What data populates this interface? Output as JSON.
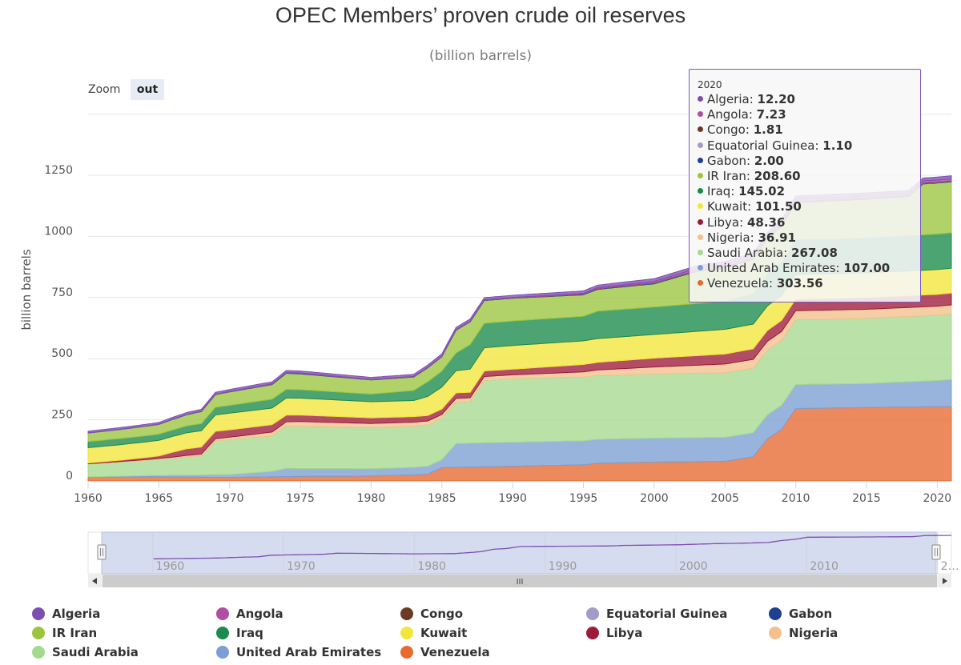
{
  "title": "OPEC Members’ proven crude oil reserves",
  "subtitle": "(billion barrels)",
  "zoom": {
    "label": "Zoom",
    "button": "out"
  },
  "tooltip": {
    "year": "2020",
    "rows": [
      {
        "name": "Algeria",
        "value": "12.20",
        "color": "#7c4fb0"
      },
      {
        "name": "Angola",
        "value": "7.23",
        "color": "#b04ea6"
      },
      {
        "name": "Congo",
        "value": "1.81",
        "color": "#6b3a24"
      },
      {
        "name": "Equatorial Guinea",
        "value": "1.10",
        "color": "#a39cc9"
      },
      {
        "name": "Gabon",
        "value": "2.00",
        "color": "#1f3f8f"
      },
      {
        "name": "IR Iran",
        "value": "208.60",
        "color": "#9bc53d"
      },
      {
        "name": "Iraq",
        "value": "145.02",
        "color": "#1b8a4c"
      },
      {
        "name": "Kuwait",
        "value": "101.50",
        "color": "#f2e63a"
      },
      {
        "name": "Libya",
        "value": "48.36",
        "color": "#9e1a3a"
      },
      {
        "name": "Nigeria",
        "value": "36.91",
        "color": "#f4c08d"
      },
      {
        "name": "Saudi Arabia",
        "value": "267.08",
        "color": "#a5d98f"
      },
      {
        "name": "United Arab Emirates",
        "value": "107.00",
        "color": "#7b9fd4"
      },
      {
        "name": "Venezuela",
        "value": "303.56",
        "color": "#e8692f"
      }
    ]
  },
  "legend": [
    {
      "name": "Algeria",
      "color": "#7c4fb0"
    },
    {
      "name": "Angola",
      "color": "#b04ea6"
    },
    {
      "name": "Congo",
      "color": "#6b3a24"
    },
    {
      "name": "Equatorial Guinea",
      "color": "#a39cc9"
    },
    {
      "name": "Gabon",
      "color": "#1f3f8f"
    },
    {
      "name": "IR Iran",
      "color": "#9bc53d"
    },
    {
      "name": "Iraq",
      "color": "#1b8a4c"
    },
    {
      "name": "Kuwait",
      "color": "#f2e63a"
    },
    {
      "name": "Libya",
      "color": "#9e1a3a"
    },
    {
      "name": "Nigeria",
      "color": "#f4c08d"
    },
    {
      "name": "Saudi Arabia",
      "color": "#a5d98f"
    },
    {
      "name": "United Arab Emirates",
      "color": "#7b9fd4"
    },
    {
      "name": "Venezuela",
      "color": "#e8692f"
    }
  ],
  "navigator": {
    "ticks": [
      "1960",
      "1970",
      "1980",
      "1990",
      "2000",
      "2010",
      "2…"
    ],
    "scroll_grip": "III"
  },
  "chart_data": {
    "type": "area",
    "stacked": true,
    "title": "OPEC Members’ proven crude oil reserves",
    "subtitle": "(billion barrels)",
    "ylabel": "billion barrels",
    "xlabel": "",
    "xlim": [
      1960,
      2021
    ],
    "ylim": [
      0,
      1500
    ],
    "yticks": [
      0,
      250,
      500,
      750,
      1000,
      1250
    ],
    "xticks": [
      1960,
      1965,
      1970,
      1975,
      1980,
      1985,
      1990,
      1995,
      2000,
      2005,
      2010,
      2015,
      2020
    ],
    "stack_order_bottom_to_top": [
      "Venezuela",
      "United Arab Emirates",
      "Saudi Arabia",
      "Nigeria",
      "Libya",
      "Kuwait",
      "Iraq",
      "IR Iran",
      "Gabon",
      "Equatorial Guinea",
      "Congo",
      "Angola",
      "Algeria"
    ],
    "series": [
      {
        "name": "Venezuela",
        "color": "#e8692f",
        "points": [
          [
            1960,
            17
          ],
          [
            1965,
            17
          ],
          [
            1970,
            14
          ],
          [
            1974,
            18
          ],
          [
            1980,
            20
          ],
          [
            1983,
            25
          ],
          [
            1984,
            28
          ],
          [
            1985,
            54
          ],
          [
            1988,
            58
          ],
          [
            1990,
            60
          ],
          [
            1995,
            66
          ],
          [
            1996,
            72
          ],
          [
            2000,
            77
          ],
          [
            2005,
            80
          ],
          [
            2007,
            99
          ],
          [
            2008,
            172
          ],
          [
            2009,
            211
          ],
          [
            2010,
            296
          ],
          [
            2015,
            300
          ],
          [
            2020,
            303.56
          ],
          [
            2021,
            303.8
          ]
        ]
      },
      {
        "name": "United Arab Emirates",
        "color": "#7b9fd4",
        "points": [
          [
            1960,
            0
          ],
          [
            1963,
            3
          ],
          [
            1970,
            12
          ],
          [
            1973,
            22
          ],
          [
            1974,
            33
          ],
          [
            1980,
            30
          ],
          [
            1983,
            30
          ],
          [
            1984,
            32
          ],
          [
            1985,
            33
          ],
          [
            1986,
            97
          ],
          [
            1988,
            98
          ],
          [
            1990,
            98
          ],
          [
            1995,
            98
          ],
          [
            2000,
            98
          ],
          [
            2005,
            98
          ],
          [
            2010,
            98
          ],
          [
            2015,
            98
          ],
          [
            2020,
            107
          ],
          [
            2021,
            111
          ]
        ]
      },
      {
        "name": "Saudi Arabia",
        "color": "#a5d98f",
        "points": [
          [
            1960,
            52
          ],
          [
            1964,
            63
          ],
          [
            1966,
            70
          ],
          [
            1967,
            75
          ],
          [
            1968,
            78
          ],
          [
            1969,
            139
          ],
          [
            1970,
            143
          ],
          [
            1973,
            145
          ],
          [
            1974,
            173
          ],
          [
            1980,
            168
          ],
          [
            1983,
            169
          ],
          [
            1985,
            169
          ],
          [
            1987,
            170
          ],
          [
            1988,
            255
          ],
          [
            1990,
            260
          ],
          [
            1995,
            261
          ],
          [
            2000,
            262
          ],
          [
            2005,
            264
          ],
          [
            2007,
            264
          ],
          [
            2009,
            265
          ],
          [
            2010,
            265
          ],
          [
            2015,
            267
          ],
          [
            2020,
            267.08
          ],
          [
            2021,
            268
          ]
        ]
      },
      {
        "name": "Nigeria",
        "color": "#f4c08d",
        "points": [
          [
            1960,
            1
          ],
          [
            1965,
            3
          ],
          [
            1970,
            10
          ],
          [
            1975,
            20
          ],
          [
            1980,
            17
          ],
          [
            1985,
            16
          ],
          [
            1990,
            16
          ],
          [
            1995,
            21
          ],
          [
            2000,
            29
          ],
          [
            2005,
            36
          ],
          [
            2010,
            37
          ],
          [
            2015,
            37
          ],
          [
            2020,
            36.91
          ],
          [
            2021,
            37
          ]
        ]
      },
      {
        "name": "Libya",
        "color": "#9e1a3a",
        "points": [
          [
            1960,
            3
          ],
          [
            1962,
            5
          ],
          [
            1965,
            10
          ],
          [
            1966,
            20
          ],
          [
            1967,
            27
          ],
          [
            1968,
            29
          ],
          [
            1969,
            30
          ],
          [
            1970,
            30
          ],
          [
            1973,
            30
          ],
          [
            1974,
            27
          ],
          [
            1980,
            23
          ],
          [
            1985,
            22
          ],
          [
            1990,
            23
          ],
          [
            1995,
            30
          ],
          [
            2000,
            36
          ],
          [
            2005,
            41
          ],
          [
            2007,
            43
          ],
          [
            2008,
            44
          ],
          [
            2010,
            47
          ],
          [
            2015,
            48
          ],
          [
            2020,
            48.36
          ],
          [
            2021,
            48.4
          ]
        ]
      },
      {
        "name": "Kuwait",
        "color": "#f2e63a",
        "points": [
          [
            1960,
            63
          ],
          [
            1965,
            64
          ],
          [
            1970,
            68
          ],
          [
            1973,
            68
          ],
          [
            1974,
            70
          ],
          [
            1980,
            66
          ],
          [
            1983,
            66
          ],
          [
            1985,
            90
          ],
          [
            1986,
            91
          ],
          [
            1987,
            95
          ],
          [
            1988,
            95
          ],
          [
            1990,
            97
          ],
          [
            1995,
            97
          ],
          [
            2000,
            97
          ],
          [
            2005,
            101
          ],
          [
            2010,
            101
          ],
          [
            2015,
            101
          ],
          [
            2020,
            101.5
          ],
          [
            2021,
            101.5
          ]
        ]
      },
      {
        "name": "Iraq",
        "color": "#1b8a4c",
        "points": [
          [
            1960,
            25
          ],
          [
            1965,
            25
          ],
          [
            1970,
            32
          ],
          [
            1973,
            36
          ],
          [
            1974,
            35
          ],
          [
            1980,
            31
          ],
          [
            1983,
            41
          ],
          [
            1984,
            60
          ],
          [
            1985,
            65
          ],
          [
            1986,
            72
          ],
          [
            1987,
            100
          ],
          [
            1990,
            100
          ],
          [
            1995,
            100
          ],
          [
            1996,
            112
          ],
          [
            2000,
            112
          ],
          [
            2005,
            115
          ],
          [
            2010,
            143
          ],
          [
            2015,
            143
          ],
          [
            2020,
            145.02
          ],
          [
            2021,
            145.02
          ]
        ]
      },
      {
        "name": "IR Iran",
        "color": "#9bc53d",
        "points": [
          [
            1960,
            35
          ],
          [
            1965,
            40
          ],
          [
            1970,
            55
          ],
          [
            1973,
            60
          ],
          [
            1974,
            66
          ],
          [
            1980,
            58
          ],
          [
            1983,
            55
          ],
          [
            1985,
            59
          ],
          [
            1986,
            93
          ],
          [
            1987,
            93
          ],
          [
            1988,
            93
          ],
          [
            1990,
            93
          ],
          [
            1995,
            88
          ],
          [
            2000,
            95
          ],
          [
            2003,
            131
          ],
          [
            2005,
            137
          ],
          [
            2007,
            138
          ],
          [
            2010,
            151
          ],
          [
            2015,
            158
          ],
          [
            2018,
            160
          ],
          [
            2019,
            208
          ],
          [
            2020,
            208.6
          ],
          [
            2021,
            208.6
          ]
        ]
      },
      {
        "name": "Gabon",
        "color": "#1f3f8f",
        "points": [
          [
            1960,
            0.2
          ],
          [
            1970,
            1
          ],
          [
            1975,
            2
          ],
          [
            1980,
            0.5
          ],
          [
            1990,
            0.9
          ],
          [
            2000,
            2.5
          ],
          [
            2010,
            2
          ],
          [
            2020,
            2
          ],
          [
            2021,
            2
          ]
        ]
      },
      {
        "name": "Equatorial Guinea",
        "color": "#a39cc9",
        "points": [
          [
            1960,
            0
          ],
          [
            1990,
            0
          ],
          [
            1995,
            0
          ],
          [
            2000,
            1
          ],
          [
            2010,
            1.7
          ],
          [
            2020,
            1.1
          ],
          [
            2021,
            1.1
          ]
        ]
      },
      {
        "name": "Congo",
        "color": "#6b3a24",
        "points": [
          [
            1960,
            0
          ],
          [
            1970,
            0.1
          ],
          [
            1975,
            0.5
          ],
          [
            1980,
            0.6
          ],
          [
            1990,
            0.8
          ],
          [
            2000,
            1.5
          ],
          [
            2010,
            1.6
          ],
          [
            2020,
            1.81
          ],
          [
            2021,
            1.81
          ]
        ]
      },
      {
        "name": "Angola",
        "color": "#b04ea6",
        "points": [
          [
            1960,
            0
          ],
          [
            1975,
            1.5
          ],
          [
            1980,
            1.2
          ],
          [
            1990,
            1.5
          ],
          [
            2000,
            5
          ],
          [
            2007,
            9
          ],
          [
            2010,
            9.5
          ],
          [
            2015,
            8.4
          ],
          [
            2020,
            7.23
          ],
          [
            2021,
            7.2
          ]
        ]
      },
      {
        "name": "Algeria",
        "color": "#7c4fb0",
        "points": [
          [
            1960,
            7
          ],
          [
            1965,
            7
          ],
          [
            1970,
            8
          ],
          [
            1975,
            8
          ],
          [
            1980,
            8
          ],
          [
            1985,
            9
          ],
          [
            1990,
            9
          ],
          [
            1995,
            10
          ],
          [
            2000,
            11
          ],
          [
            2005,
            12
          ],
          [
            2010,
            12.2
          ],
          [
            2015,
            12.2
          ],
          [
            2020,
            12.2
          ],
          [
            2021,
            12.2
          ]
        ]
      }
    ]
  }
}
